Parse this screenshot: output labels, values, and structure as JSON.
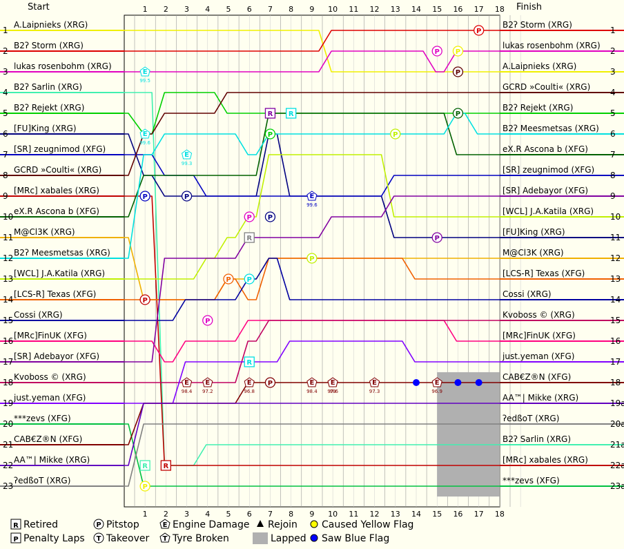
{
  "header": {
    "start": "Start",
    "finish": "Finish"
  },
  "chart_data": {
    "type": "line",
    "laps": [
      "1",
      "2",
      "3",
      "4",
      "5",
      "6",
      "7",
      "8",
      "9",
      "10",
      "11",
      "12",
      "13",
      "14",
      "15",
      "16",
      "17",
      "18"
    ],
    "positions": [
      "1",
      "2",
      "3",
      "4",
      "5",
      "6",
      "7",
      "8",
      "9",
      "10",
      "11",
      "12",
      "13",
      "14",
      "15",
      "16",
      "17",
      "18",
      "19",
      "20",
      "21",
      "22",
      "23"
    ],
    "finish_position_labels": [
      "1",
      "2",
      "3",
      "4",
      "5",
      "6",
      "7",
      "8",
      "9",
      "10",
      "11",
      "12",
      "13",
      "14",
      "15",
      "16",
      "17",
      "18",
      "19a",
      "20a",
      "21a",
      "22a",
      "23a"
    ],
    "start_grid": [
      "A.Laipnieks (XRG)",
      "B2ʔ Storm (XRG)",
      "lukas rosenbohm (XRG)",
      "B2ʔ Sarlin (XRG)",
      "B2ʔ Rejekt (XRG)",
      "[FU]King (XRG)",
      "[SR] zeugnimod (XFG)",
      "GCRD »Coulti« (XRG)",
      "[MRc] xabales (XRG)",
      "eX.R Ascona b (XFG)",
      "M@Cl3K (XRG)",
      "B2ʔ Meesmetsas (XRG)",
      "[WCL] J.A.Katila (XRG)",
      "[LCS-R] Texas (XFG)",
      "Cossi (XRG)",
      "[MRc]FinUK (XFG)",
      "[SR] Adebayor (XFG)",
      "Kvoboss © (XRG)",
      "just.yeman (XFG)",
      "***zevs (XFG)",
      "CAB€Z®N (XFG)",
      "AA™| Mikke (XRG)",
      "ʔedßoT (XRG)"
    ],
    "finish_order": [
      "B2ʔ Storm (XRG)",
      "lukas rosenbohm (XRG)",
      "A.Laipnieks (XRG)",
      "GCRD »Coulti« (XRG)",
      "B2ʔ Rejekt (XRG)",
      "B2ʔ Meesmetsas (XRG)",
      "eX.R Ascona b (XFG)",
      "[SR] zeugnimod (XFG)",
      "[SR] Adebayor (XFG)",
      "[WCL] J.A.Katila (XRG)",
      "[FU]King (XRG)",
      "M@Cl3K (XRG)",
      "[LCS-R] Texas (XFG)",
      "Cossi (XRG)",
      "Kvoboss © (XRG)",
      "[MRc]FinUK (XFG)",
      "just.yeman (XFG)",
      "CAB€Z®N (XFG)",
      "AA™| Mikke (XRG)",
      "ʔedßoT (XRG)",
      "B2ʔ Sarlin (XRG)",
      "[MRc] xabales (XRG)",
      "***zevs (XFG)"
    ],
    "series": [
      {
        "driver": "A.Laipnieks (XRG)",
        "color": "#f0f000",
        "positions": [
          1,
          1,
          1,
          1,
          1,
          1,
          1,
          1,
          1,
          1,
          3,
          3,
          3,
          3,
          3,
          3,
          3,
          3,
          3
        ]
      },
      {
        "driver": "B2ʔ Storm (XRG)",
        "color": "#dd0000",
        "positions": [
          2,
          2,
          2,
          2,
          2,
          2,
          2,
          2,
          2,
          2,
          1,
          1,
          1,
          1,
          1,
          1,
          1,
          1,
          1
        ]
      },
      {
        "driver": "lukas rosenbohm (XRG)",
        "color": "#e000c0",
        "positions": [
          3,
          3,
          3,
          3,
          3,
          3,
          3,
          3,
          3,
          3,
          2,
          2,
          2,
          2,
          2,
          3,
          2,
          2,
          2
        ]
      },
      {
        "driver": "B2ʔ Sarlin (XRG)",
        "color": "#40f0b0",
        "positions": [
          4,
          4,
          22,
          22,
          21,
          21,
          21,
          21,
          21,
          21,
          21,
          21,
          21,
          21,
          21,
          21,
          21,
          21,
          21
        ]
      },
      {
        "driver": "B2ʔ Rejekt (XRG)",
        "color": "#00d000",
        "positions": [
          5,
          6,
          4,
          4,
          4,
          5,
          5,
          5,
          5,
          5,
          5,
          5,
          5,
          5,
          5,
          5,
          5,
          5,
          5
        ]
      },
      {
        "driver": "[FU]King (XRG)",
        "color": "#000080",
        "positions": [
          6,
          8,
          9,
          9,
          9,
          9,
          9,
          6,
          9,
          9,
          9,
          9,
          9,
          11,
          11,
          11,
          11,
          11,
          11
        ]
      },
      {
        "driver": "[SR] zeugnimod (XFG)",
        "color": "#0000c0",
        "positions": [
          7,
          7,
          8,
          8,
          9,
          9,
          9,
          9,
          9,
          9,
          9,
          9,
          9,
          8,
          8,
          8,
          8,
          8,
          8
        ]
      },
      {
        "driver": "GCRD »Coulti« (XRG)",
        "color": "#600000",
        "positions": [
          8,
          6,
          5,
          5,
          5,
          4,
          4,
          4,
          4,
          4,
          4,
          4,
          4,
          4,
          4,
          4,
          4,
          4,
          4
        ]
      },
      {
        "driver": "[MRc] xabales (XRG)",
        "color": "#c00000",
        "positions": [
          9,
          9,
          22,
          22,
          22,
          22,
          22,
          22,
          22,
          22,
          22,
          22,
          22,
          22,
          22,
          22,
          22,
          22,
          22
        ]
      },
      {
        "driver": "eX.R Ascona b (XFG)",
        "color": "#006000",
        "positions": [
          10,
          8,
          8,
          8,
          8,
          8,
          8,
          5,
          5,
          5,
          5,
          5,
          5,
          5,
          5,
          5,
          7,
          7,
          7
        ]
      },
      {
        "driver": "M@Cl3K (XRG)",
        "color": "#f0b000",
        "positions": [
          11,
          14,
          14,
          14,
          14,
          13,
          13,
          12,
          12,
          12,
          12,
          12,
          12,
          12,
          12,
          12,
          12,
          12,
          12
        ]
      },
      {
        "driver": "B2ʔ Meesmetsas (XRG)",
        "color": "#00e0e0",
        "positions": [
          12,
          7,
          6,
          6,
          6,
          6,
          7,
          6,
          6,
          6,
          6,
          6,
          6,
          6,
          6,
          6,
          5,
          6,
          6
        ]
      },
      {
        "driver": "[WCL] J.A.Katila (XRG)",
        "color": "#c0f000",
        "positions": [
          13,
          13,
          13,
          13,
          12,
          11,
          10,
          7,
          7,
          7,
          7,
          7,
          7,
          10,
          10,
          10,
          10,
          10,
          10
        ]
      },
      {
        "driver": "[LCS-R] Texas (XFG)",
        "color": "#f06000",
        "positions": [
          14,
          14,
          14,
          14,
          14,
          13,
          14,
          12,
          12,
          12,
          12,
          12,
          12,
          12,
          13,
          13,
          13,
          13,
          13
        ]
      },
      {
        "driver": "Cossi (XRG)",
        "color": "#0000a0",
        "positions": [
          15,
          15,
          15,
          14,
          14,
          14,
          13,
          12,
          14,
          14,
          14,
          14,
          14,
          14,
          14,
          14,
          14,
          14,
          14
        ]
      },
      {
        "driver": "[MRc]FinUK (XFG)",
        "color": "#ff0080",
        "positions": [
          16,
          16,
          17,
          16,
          16,
          16,
          15,
          15,
          15,
          15,
          15,
          15,
          15,
          15,
          15,
          15,
          16,
          16,
          16
        ]
      },
      {
        "driver": "[SR] Adebayor (XFG)",
        "color": "#8000a0",
        "positions": [
          17,
          17,
          12,
          12,
          12,
          12,
          11,
          11,
          11,
          11,
          10,
          10,
          10,
          9,
          9,
          9,
          9,
          9,
          9
        ]
      },
      {
        "driver": "Kvoboss © (XRG)",
        "color": "#c00060",
        "positions": [
          18,
          18,
          18,
          18,
          18,
          18,
          16,
          15,
          15,
          15,
          15,
          15,
          15,
          15,
          15,
          15,
          15,
          15,
          15
        ]
      },
      {
        "driver": "just.yeman (XFG)",
        "color": "#8000ff",
        "positions": [
          19,
          19,
          19,
          17,
          17,
          17,
          17,
          17,
          16,
          16,
          16,
          16,
          16,
          16,
          17,
          17,
          17,
          17,
          17
        ]
      },
      {
        "driver": "***zevs (XFG)",
        "color": "#00c040",
        "positions": [
          20,
          23,
          23,
          23,
          23,
          23,
          23,
          23,
          23,
          23,
          23,
          23,
          23,
          23,
          23,
          23,
          23,
          23,
          23
        ]
      },
      {
        "driver": "CAB€Z®N (XFG)",
        "color": "#800000",
        "positions": [
          21,
          19,
          19,
          19,
          19,
          19,
          18,
          18,
          18,
          18,
          18,
          18,
          18,
          18,
          18,
          18,
          18,
          18,
          18
        ]
      },
      {
        "driver": "AA™| Mikke (XRG)",
        "color": "#6000c0",
        "positions": [
          22,
          19,
          19,
          19,
          19,
          19,
          19,
          19,
          19,
          19,
          19,
          19,
          19,
          19,
          19,
          19,
          19,
          19,
          19
        ]
      },
      {
        "driver": "ʔedßoT (XRG)",
        "color": "#808080",
        "positions": [
          23,
          20,
          20,
          20,
          20,
          20,
          20,
          20,
          20,
          20,
          20,
          20,
          20,
          20,
          20,
          20,
          20,
          20,
          20
        ]
      }
    ],
    "events": [
      {
        "type": "pitstop",
        "lap": 17,
        "position": 1,
        "color": "#dd0000"
      },
      {
        "type": "pitstop",
        "lap": 15,
        "position": 2,
        "color": "#e000c0"
      },
      {
        "type": "pitstop",
        "lap": 16,
        "position": 3,
        "color": "#600000"
      },
      {
        "type": "pitstop",
        "lap": 16,
        "position": 5,
        "color": "#006000"
      },
      {
        "type": "pitstop",
        "lap": 7,
        "position": 6,
        "color": "#00d000"
      },
      {
        "type": "pitstop",
        "lap": 13,
        "position": 6,
        "color": "#c0f000"
      },
      {
        "type": "pitstop",
        "lap": 1,
        "position": 9,
        "color": "#0000c0"
      },
      {
        "type": "pitstop",
        "lap": 3,
        "position": 9,
        "color": "#000080"
      },
      {
        "type": "pitstop",
        "lap": 6,
        "position": 10,
        "color": "#e000c0"
      },
      {
        "type": "pitstop",
        "lap": 7,
        "position": 10,
        "color": "#000080"
      },
      {
        "type": "pitstop",
        "lap": 15,
        "position": 11,
        "color": "#8000a0"
      },
      {
        "type": "pitstop",
        "lap": 9,
        "position": 12,
        "color": "#c0f000"
      },
      {
        "type": "pitstop",
        "lap": 5,
        "position": 13,
        "color": "#f06000"
      },
      {
        "type": "pitstop",
        "lap": 6,
        "position": 13,
        "color": "#00e0e0"
      },
      {
        "type": "pitstop",
        "lap": 1,
        "position": 14,
        "color": "#c00000"
      },
      {
        "type": "pitstop",
        "lap": 4,
        "position": 15,
        "color": "#e000c0"
      },
      {
        "type": "pitstop",
        "lap": 7,
        "position": 18,
        "color": "#800000"
      },
      {
        "type": "pitstop",
        "lap": 1,
        "position": 23,
        "color": "#f0f000"
      },
      {
        "type": "pitstop",
        "lap": 16,
        "position": 2,
        "color": "#f0f000"
      },
      {
        "type": "retired",
        "lap": 2,
        "position": 22,
        "color": "#c00000"
      },
      {
        "type": "retired",
        "lap": 1,
        "position": 22,
        "color": "#40f0b0"
      },
      {
        "type": "retired",
        "lap": 7,
        "position": 5,
        "color": "#8000a0"
      },
      {
        "type": "retired",
        "lap": 8,
        "position": 5,
        "color": "#00e0e0"
      },
      {
        "type": "retired",
        "lap": 6,
        "position": 11,
        "color": "#808080"
      },
      {
        "type": "retired",
        "lap": 6,
        "position": 17,
        "color": "#00e0e0"
      },
      {
        "type": "damage",
        "lap": 1,
        "position": 3,
        "value": "99.5",
        "color": "#00e0e0"
      },
      {
        "type": "damage",
        "lap": 1,
        "position": 6,
        "value": "99.6",
        "color": "#00e0e0"
      },
      {
        "type": "damage",
        "lap": 3,
        "position": 7,
        "value": "99.3",
        "color": "#00e0e0"
      },
      {
        "type": "damage",
        "lap": 9,
        "position": 9,
        "value": "99.6",
        "color": "#0000c0"
      },
      {
        "type": "damage",
        "lap": 3,
        "position": 18,
        "value": "98.4",
        "color": "#800000"
      },
      {
        "type": "damage",
        "lap": 4,
        "position": 18,
        "value": "97.2",
        "color": "#800000"
      },
      {
        "type": "damage",
        "lap": 6,
        "position": 18,
        "value": "96.8",
        "color": "#800000"
      },
      {
        "type": "damage",
        "lap": 9,
        "position": 18,
        "value": "98.4",
        "color": "#800000"
      },
      {
        "type": "damage",
        "lap": 10,
        "position": 18,
        "value": "98",
        "color": "#800000"
      },
      {
        "type": "damage",
        "lap": 10,
        "position": 18,
        "value": "97.6",
        "color": "#800000"
      },
      {
        "type": "damage",
        "lap": 12,
        "position": 18,
        "value": "97.3",
        "color": "#800000"
      },
      {
        "type": "damage",
        "lap": 15,
        "position": 18,
        "value": "96.9",
        "color": "#800000"
      },
      {
        "type": "blueflag",
        "lap": 14,
        "position": 18
      },
      {
        "type": "blueflag",
        "lap": 16,
        "position": 18
      },
      {
        "type": "blueflag",
        "lap": 17,
        "position": 18
      }
    ],
    "lapped_region": {
      "from_lap": 14.5,
      "to_lap": 17,
      "from_position": 17.5,
      "to_position": 23.5
    },
    "legend": [
      {
        "symbol": "R",
        "label": "Retired"
      },
      {
        "symbol": "P",
        "label": "Penalty Laps"
      },
      {
        "symbol": "Ⓟ",
        "label": "Pitstop"
      },
      {
        "symbol": "Ⓣ",
        "label": "Takeover"
      },
      {
        "symbol": "E",
        "label": "Engine Damage"
      },
      {
        "symbol": "T",
        "label": "Tyre Broken"
      },
      {
        "symbol": "▲",
        "label": "Rejoin"
      },
      {
        "symbol": "lapped",
        "label": "Lapped"
      },
      {
        "symbol": "yellow",
        "label": "Caused Yellow Flag"
      },
      {
        "symbol": "blue",
        "label": "Saw Blue Flag"
      }
    ]
  }
}
